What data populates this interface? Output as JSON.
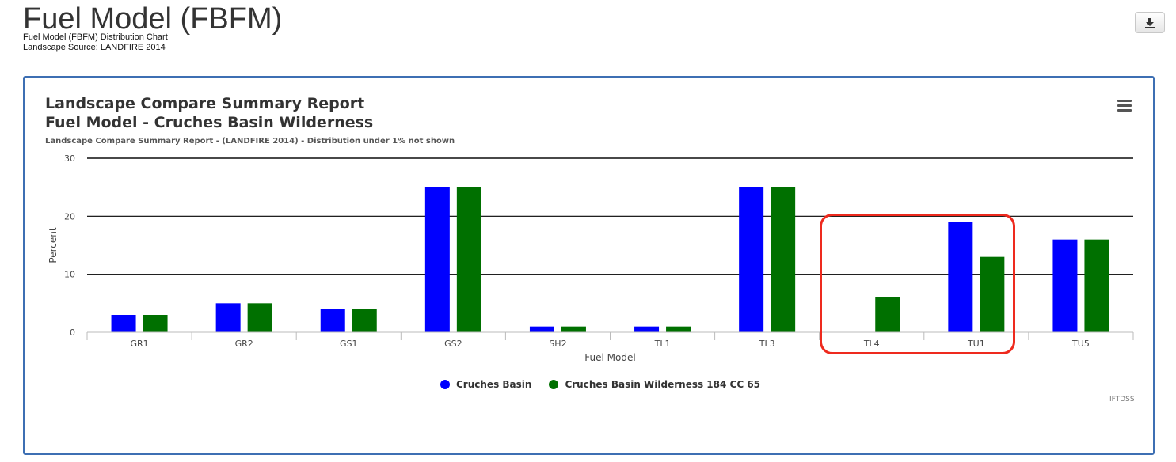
{
  "header": {
    "title": "Fuel Model (FBFM)",
    "subtitle_1": "Fuel Model (FBFM) Distribution Chart",
    "subtitle_2": "Landscape Source: LANDFIRE 2014"
  },
  "toolbar": {
    "download_icon": "download-icon",
    "menu_icon": "hamburger-menu-icon"
  },
  "chart_data": {
    "type": "bar",
    "title_line_1": "Landscape Compare Summary Report",
    "title_line_2": "Fuel Model - Cruches Basin Wilderness",
    "subtitle": "Landscape Compare Summary Report - (LANDFIRE 2014) - Distribution under 1% not shown",
    "xlabel": "Fuel Model",
    "ylabel": "Percent",
    "ylim": [
      0,
      30
    ],
    "yticks": [
      0,
      10,
      20,
      30
    ],
    "grid": true,
    "legend_position": "bottom-center",
    "categories": [
      "GR1",
      "GR2",
      "GS1",
      "GS2",
      "SH2",
      "TL1",
      "TL3",
      "TL4",
      "TU1",
      "TU5"
    ],
    "series": [
      {
        "name": "Cruches Basin",
        "color": "#0000ff",
        "values": [
          3,
          5,
          4,
          25,
          1,
          1,
          25,
          0,
          19,
          16
        ]
      },
      {
        "name": "Cruches Basin Wilderness 184 CC 65",
        "color": "#007000",
        "values": [
          3,
          5,
          4,
          25,
          1,
          1,
          25,
          6,
          13,
          16
        ]
      }
    ],
    "highlight_categories": [
      "TL4",
      "TU1"
    ],
    "highlight_color": "#ee2a1e",
    "credits": "IFTDSS"
  }
}
